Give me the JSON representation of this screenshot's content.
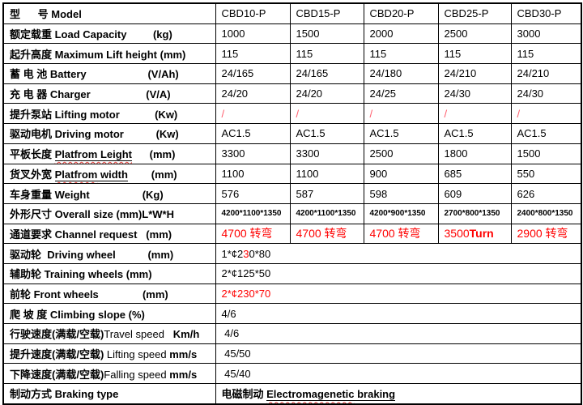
{
  "colors": {
    "background": "#FFFFFF",
    "border": "#000000",
    "text": "#000000",
    "accent_red": "#FF0000",
    "slash_red": "#FF5A6A",
    "spellcheck_red": "#E53935"
  },
  "table": {
    "rows": [
      {
        "label": [
          {
            "t": "型      号 Model"
          }
        ],
        "values": [
          "CBD10-P",
          "CBD15-P",
          "CBD20-P",
          "CBD25-P",
          "CBD30-P"
        ]
      },
      {
        "label": [
          {
            "t": "额定载重 Load Capacity         (kg)"
          }
        ],
        "values": [
          "1000",
          "1500",
          "2000",
          "2500",
          "3000"
        ]
      },
      {
        "label": [
          {
            "t": "起升高度 Maximum Lift height (mm)"
          }
        ],
        "values": [
          "115",
          "115",
          "115",
          "115",
          "115"
        ]
      },
      {
        "label": [
          {
            "t": "蓄 电 池 Battery                     (V/Ah)"
          }
        ],
        "values": [
          "24/165",
          "24/165",
          "24/180",
          "24/210",
          "24/210"
        ]
      },
      {
        "label": [
          {
            "t": "充 电 器 Charger                   (V/A)"
          }
        ],
        "values": [
          "24/20",
          "24/20",
          "24/25",
          "24/30",
          "24/30"
        ]
      },
      {
        "label": [
          {
            "t": "提升泵站 Lifting motor            (Kw)"
          }
        ],
        "values": [
          "/",
          "/",
          "/",
          "/",
          "/"
        ],
        "value_color": "slash_red"
      },
      {
        "label": [
          {
            "t": "驱动电机 Driving motor           (Kw)"
          }
        ],
        "values": [
          "AC1.5",
          "AC1.5",
          "AC1.5",
          "AC1.5",
          "AC1.5"
        ]
      },
      {
        "label": [
          {
            "t": "平板长度 "
          },
          {
            "t": "Platfrom Leight",
            "u": true,
            "wavy": true
          },
          {
            "t": "      (mm)"
          }
        ],
        "values": [
          "3300",
          "3300",
          "2500",
          "1800",
          "1500"
        ]
      },
      {
        "label": [
          {
            "t": "货叉外宽 "
          },
          {
            "t": "Platfrom",
            "u": true,
            "wavy": true
          },
          {
            "t": " width",
            "u": true
          },
          {
            "t": "        (mm)"
          }
        ],
        "values": [
          "1100",
          "1100",
          "900",
          "685",
          "550"
        ]
      },
      {
        "label": [
          {
            "t": "车身重量 Weight                  (Kg)"
          }
        ],
        "values": [
          "576",
          "587",
          "598",
          "609",
          "626"
        ]
      },
      {
        "label": [
          {
            "t": "外形尺寸 Overall size (mm)L*W*H"
          }
        ],
        "values": [
          "4200*1100*1350",
          "4200*1100*1350",
          "4200*900*1350",
          "2700*800*1350",
          "2400*800*1350"
        ],
        "value_size": 10,
        "value_bold": true
      },
      {
        "label": [
          {
            "t": "通道要求 Channel request   (mm)"
          }
        ],
        "values": [
          "4700 转弯",
          "4700 转弯",
          "4700 转弯",
          [
            {
              "t": "3500"
            },
            {
              "t": "Turn",
              "b": true
            }
          ],
          "2900 转弯"
        ],
        "value_color": "accent_red",
        "value_size": 14
      },
      {
        "label": [
          {
            "t": "驱动轮  Driving wheel           (mm)"
          }
        ],
        "merged": true,
        "value": [
          {
            "t": "1*¢2"
          },
          {
            "t": "3",
            "c": "accent_red"
          },
          {
            "t": "0*80"
          }
        ]
      },
      {
        "label": [
          {
            "t": "辅助轮 Training wheels (mm)"
          }
        ],
        "merged": true,
        "value": [
          {
            "t": "2*¢125*50"
          }
        ]
      },
      {
        "label": [
          {
            "t": "前轮 Front wheels               (mm)"
          }
        ],
        "merged": true,
        "value": [
          {
            "t": "2*¢230*70"
          }
        ],
        "value_color": "accent_red"
      },
      {
        "label": [
          {
            "t": "爬 坡 度 Climbing slope (%)"
          }
        ],
        "merged": true,
        "value": [
          {
            "t": "4/6"
          }
        ]
      },
      {
        "label": [
          {
            "t": "行驶速度(满载/空载)"
          },
          {
            "t": "Travel speed",
            "b": false
          },
          {
            "t": "   Km/h"
          }
        ],
        "merged": true,
        "value": [
          {
            "t": " 4/6"
          }
        ]
      },
      {
        "label": [
          {
            "t": "提升速度(满载/空载) "
          },
          {
            "t": "Lifting speed",
            "b": false
          },
          {
            "t": " "
          },
          {
            "t": "mm/s"
          }
        ],
        "merged": true,
        "value": [
          {
            "t": " 45/50"
          }
        ]
      },
      {
        "label": [
          {
            "t": "下降速度(满载/空载)"
          },
          {
            "t": "Falling speed",
            "b": false
          },
          {
            "t": " "
          },
          {
            "t": "mm/s"
          }
        ],
        "merged": true,
        "value": [
          {
            "t": " 45/40"
          }
        ]
      },
      {
        "label": [
          {
            "t": "制动方式 Braking type"
          }
        ],
        "merged": true,
        "value": [
          {
            "t": "电磁制动 ",
            "b": true
          },
          {
            "t": "Electromagenetic",
            "b": true,
            "u": true,
            "wavy": true
          },
          {
            "t": " braking",
            "b": true,
            "u": true
          }
        ]
      }
    ]
  }
}
